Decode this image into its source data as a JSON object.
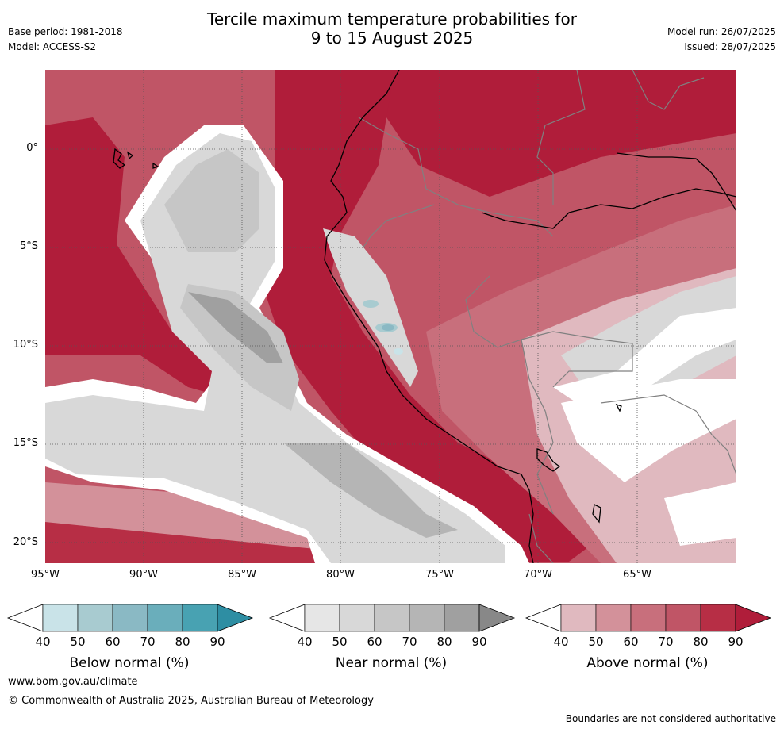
{
  "header": {
    "title_line1": "Tercile maximum temperature probabilities for",
    "title_line2": "9 to 15 August 2025",
    "base_period": "Base period: 1981-2018",
    "model": "Model: ACCESS-S2",
    "model_run": "Model run: 26/07/2025",
    "issued": "Issued: 28/07/2025"
  },
  "map": {
    "lat_labels": [
      "0°",
      "5°S",
      "10°S",
      "15°S",
      "20°S"
    ],
    "lon_labels": [
      "95°W",
      "90°W",
      "85°W",
      "80°W",
      "75°W",
      "70°W",
      "65°W"
    ],
    "colors": {
      "above": [
        "#e0b9bf",
        "#d3919a",
        "#c86f7c",
        "#c05566",
        "#b72e45",
        "#b01d3a"
      ],
      "near": [
        "#e6e6e6",
        "#d8d8d8",
        "#c6c6c6",
        "#b5b5b5",
        "#a0a0a0",
        "#888888"
      ],
      "below": [
        "#c9e3e8",
        "#a8cbd0",
        "#8ab9c4",
        "#6aaebb",
        "#48a2b2",
        "#2e8ea3"
      ],
      "coast": "#000000",
      "border": "#808080"
    }
  },
  "colorbars": [
    {
      "key": "below",
      "label": "Below normal (%)",
      "ticks": [
        "40",
        "50",
        "60",
        "70",
        "80",
        "90"
      ]
    },
    {
      "key": "near",
      "label": "Near normal (%)",
      "ticks": [
        "40",
        "50",
        "60",
        "70",
        "80",
        "90"
      ]
    },
    {
      "key": "above",
      "label": "Above normal (%)",
      "ticks": [
        "40",
        "50",
        "60",
        "70",
        "80",
        "90"
      ]
    }
  ],
  "footer": {
    "url": "www.bom.gov.au/climate",
    "copyright": "© Commonwealth of Australia 2025, Australian Bureau of Meteorology",
    "disclaimer": "Boundaries are not considered authoritative"
  }
}
